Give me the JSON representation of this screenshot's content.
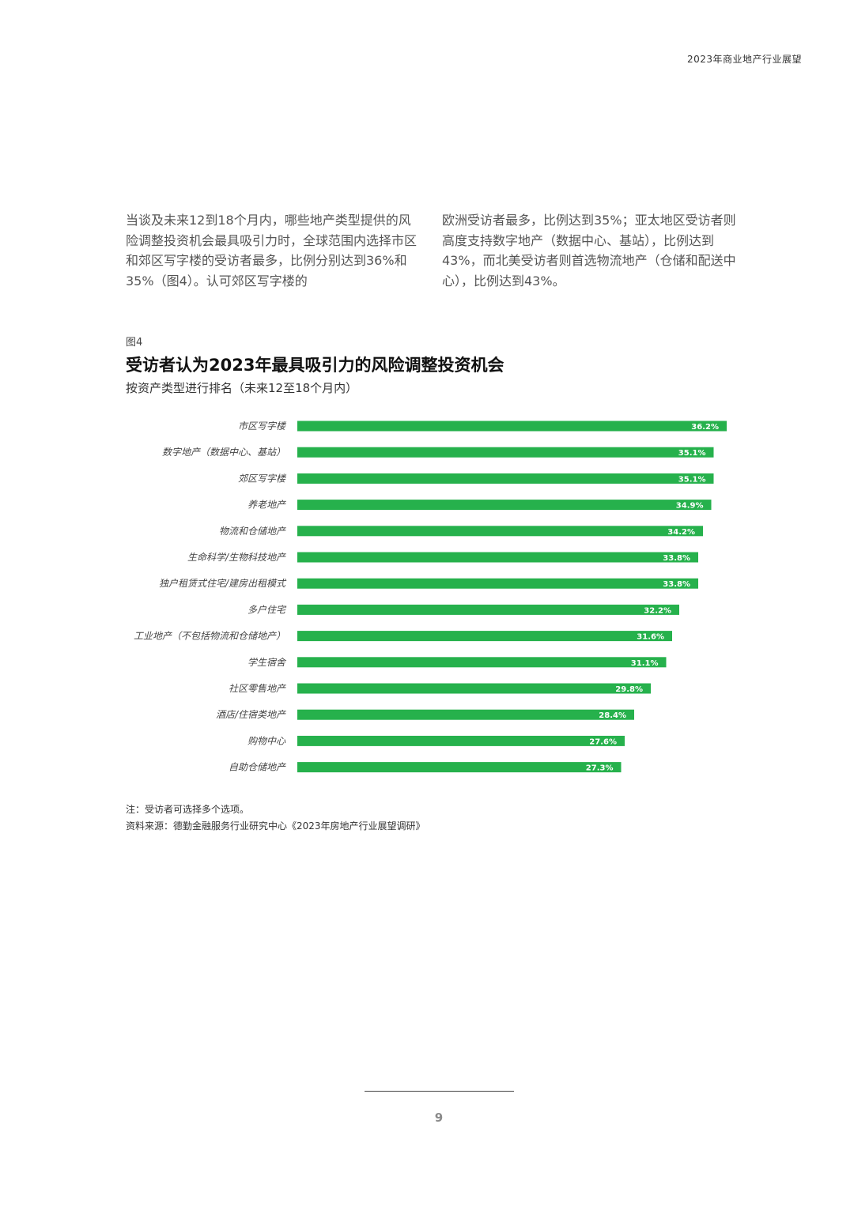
{
  "header": {
    "title": "2023年商业地产行业展望"
  },
  "body": {
    "left_paragraph": "当谈及未来12到18个月内，哪些地产类型提供的风险调整投资机会最具吸引力时，全球范围内选择市区和郊区写字楼的受访者最多，比例分别达到36%和35%（图4）。认可郊区写字楼的",
    "right_paragraph": "欧洲受访者最多，比例达到35%；亚太地区受访者则高度支持数字地产（数据中心、基站），比例达到43%，而北美受访者则首选物流地产（仓储和配送中心），比例达到43%。"
  },
  "figure": {
    "label": "图4",
    "title": "受访者认为2023年最具吸引力的风险调整投资机会",
    "subtitle": "按资产类型进行排名（未来12至18个月内）"
  },
  "chart_data": {
    "type": "bar",
    "orientation": "horizontal",
    "categories": [
      "市区写字楼",
      "数字地产（数据中心、基站）",
      "郊区写字楼",
      "养老地产",
      "物流和仓储地产",
      "生命科学/生物科技地产",
      "独户租赁式住宅/建房出租模式",
      "多户住宅",
      "工业地产（不包括物流和仓储地产）",
      "学生宿舍",
      "社区零售地产",
      "酒店/住宿类地产",
      "购物中心",
      "自助仓储地产"
    ],
    "values": [
      36.2,
      35.1,
      35.1,
      34.9,
      34.2,
      33.8,
      33.8,
      32.2,
      31.6,
      31.1,
      29.8,
      28.4,
      27.6,
      27.3
    ],
    "value_labels": [
      "36.2%",
      "35.1%",
      "35.1%",
      "34.9%",
      "34.2%",
      "33.8%",
      "33.8%",
      "32.2%",
      "31.6%",
      "31.1%",
      "29.8%",
      "28.4%",
      "27.6%",
      "27.3%"
    ],
    "bar_color": "#26b14c",
    "label_color": "#ffffff",
    "axis_visible": false,
    "grid": false
  },
  "notes": {
    "note": "注：受访者可选择多个选项。",
    "source": "资料来源：德勤金融服务行业研究中心《2023年房地产行业展望调研》"
  },
  "footer": {
    "page_number": "9"
  }
}
